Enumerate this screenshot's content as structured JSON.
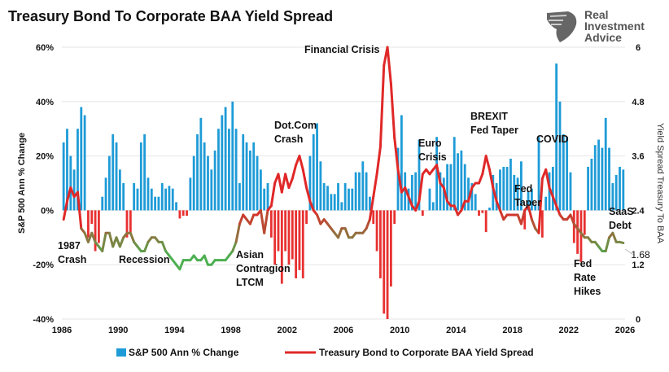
{
  "title": "Treasury Bond To Corporate BAA Yield Spread",
  "logo": {
    "text": "Real\nInvestment\nAdvice",
    "icon": "eagle-shield-icon"
  },
  "colors": {
    "bars_positive": "#1e9bd7",
    "bars_negative": "#e83030",
    "line_high": "#e02828",
    "line_low": "#4caf50"
  },
  "chart_data": {
    "type": "bar+line",
    "title": "Treasury Bond To Corporate BAA Yield Spread",
    "xlabel": "",
    "ylabel": "S&P 500 Ann % Change",
    "ylabel_right": "Yield Spread Treasury To BAA",
    "xlim": [
      1986,
      2026
    ],
    "ylim": [
      -40,
      60
    ],
    "ylim_right": [
      0,
      6
    ],
    "x_ticks": [
      "1986",
      "1990",
      "1994",
      "1998",
      "2002",
      "2006",
      "2010",
      "2014",
      "2018",
      "2022",
      "2026"
    ],
    "y_ticks": [
      "-40%",
      "-20%",
      "0%",
      "20%",
      "40%",
      "60%"
    ],
    "y_ticks_right": [
      "0",
      "1.2",
      "2.4",
      "3.6",
      "4.8",
      "6"
    ],
    "grid": "horizontal",
    "legend": "bottom",
    "frequency": "quarterly from 1986",
    "series": [
      {
        "name": "S&P 500 Ann % Change",
        "type": "bar",
        "axis": "left",
        "values": [
          25,
          30,
          20,
          15,
          30,
          38,
          35,
          -10,
          -5,
          -15,
          -12,
          5,
          12,
          20,
          28,
          25,
          15,
          10,
          -10,
          -8,
          10,
          8,
          25,
          28,
          12,
          8,
          5,
          5,
          10,
          8,
          9,
          8,
          3,
          -3,
          -2,
          -2,
          12,
          20,
          28,
          34,
          25,
          20,
          15,
          22,
          30,
          35,
          38,
          30,
          40,
          30,
          10,
          28,
          25,
          22,
          25,
          20,
          15,
          8,
          10,
          -10,
          -20,
          -15,
          -27,
          -15,
          -20,
          -18,
          -25,
          -22,
          -25,
          -5,
          20,
          28,
          32,
          18,
          10,
          9,
          6,
          6,
          10,
          3,
          10,
          8,
          8,
          14,
          14,
          18,
          14,
          5,
          -5,
          -15,
          -25,
          -38,
          -40,
          -28,
          -5,
          23,
          35,
          14,
          8,
          13,
          14,
          26,
          -2,
          0,
          8,
          3,
          27,
          14,
          12,
          17,
          17,
          27,
          21,
          22,
          17,
          12,
          10,
          6,
          -2,
          -1,
          -8,
          1,
          13,
          10,
          15,
          16,
          16,
          19,
          13,
          12,
          18,
          -7,
          7,
          8,
          2,
          27,
          -10,
          5,
          14,
          16,
          54,
          40,
          28,
          27,
          14,
          -12,
          -16,
          -19,
          -9,
          16,
          19,
          24,
          26,
          23,
          34,
          23,
          10,
          13,
          16,
          15
        ]
      },
      {
        "name": "Treasury Bond to Corporate BAA Yield Spread",
        "type": "line",
        "axis": "right",
        "values": [
          2.2,
          2.6,
          2.9,
          2.7,
          2.8,
          2.0,
          1.9,
          1.7,
          1.9,
          1.7,
          1.6,
          1.5,
          1.9,
          1.9,
          1.6,
          1.8,
          1.6,
          1.8,
          1.9,
          1.9,
          1.7,
          1.6,
          1.5,
          1.5,
          1.7,
          1.8,
          1.8,
          1.7,
          1.7,
          1.5,
          1.4,
          1.3,
          1.2,
          1.1,
          1.3,
          1.3,
          1.3,
          1.4,
          1.3,
          1.3,
          1.4,
          1.2,
          1.2,
          1.3,
          1.3,
          1.3,
          1.3,
          1.4,
          1.5,
          1.7,
          2.1,
          2.3,
          2.2,
          2.1,
          2.3,
          2.3,
          2.4,
          1.9,
          2.4,
          2.5,
          3.0,
          3.2,
          2.8,
          3.2,
          2.9,
          3.1,
          3.4,
          3.6,
          3.3,
          2.9,
          2.6,
          2.4,
          2.3,
          2.1,
          2.2,
          2.1,
          2.0,
          1.9,
          1.8,
          2.0,
          2.0,
          1.8,
          1.8,
          1.9,
          1.9,
          1.9,
          2.0,
          2.2,
          2.7,
          3.2,
          3.8,
          5.6,
          6.0,
          5.2,
          4.0,
          3.3,
          2.8,
          2.9,
          2.7,
          2.5,
          2.4,
          2.6,
          3.2,
          3.3,
          3.2,
          3.3,
          3.4,
          3.0,
          2.9,
          2.6,
          2.5,
          2.5,
          2.3,
          2.4,
          2.6,
          2.6,
          2.9,
          3.0,
          3.0,
          3.2,
          3.6,
          3.3,
          2.9,
          2.6,
          2.4,
          2.2,
          2.3,
          2.3,
          2.3,
          2.3,
          2.1,
          2.4,
          2.5,
          2.2,
          2.0,
          1.9,
          3.1,
          3.3,
          2.9,
          2.7,
          2.5,
          2.3,
          2.2,
          2.2,
          2.3,
          2.1,
          2.0,
          1.9,
          1.8,
          1.8,
          1.7,
          1.7,
          1.6,
          1.5,
          1.5,
          1.8,
          1.9,
          1.7,
          1.7,
          1.68
        ]
      }
    ],
    "last_value_label": "1.68",
    "annotations": [
      {
        "text": "Financial Crisis"
      },
      {
        "text": "Dot.Com\nCrash"
      },
      {
        "text": "Euro\nCrisis"
      },
      {
        "text": "BREXIT\nFed Taper"
      },
      {
        "text": "COVID"
      },
      {
        "text": "Fed\nTaper"
      },
      {
        "text": "SaaS\nDebt"
      },
      {
        "text": "1987\nCrash"
      },
      {
        "text": "Recession"
      },
      {
        "text": "Asian\nContragion\nLTCM"
      },
      {
        "text": "Fed\nRate\nHikes"
      }
    ]
  }
}
